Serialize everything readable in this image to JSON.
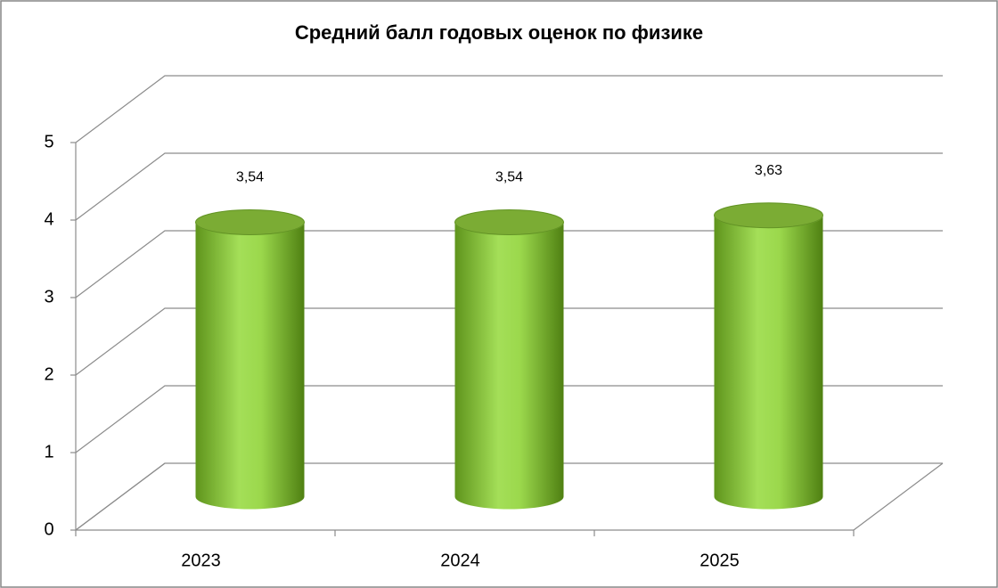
{
  "chart_data": {
    "type": "cylinder",
    "title": "Средний балл годовых оценок по физике",
    "categories": [
      "2023",
      "2024",
      "2025"
    ],
    "values": [
      3.54,
      3.54,
      3.63
    ],
    "value_labels": [
      "3,54",
      "3,54",
      "3,63"
    ],
    "color": "#8cc43c",
    "ylim": [
      0,
      5
    ],
    "yticks": [
      0,
      1,
      2,
      3,
      4,
      5
    ],
    "grid": true
  }
}
